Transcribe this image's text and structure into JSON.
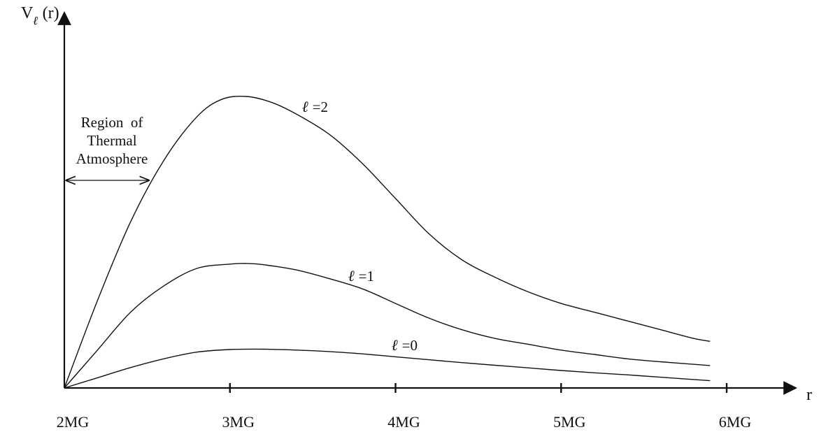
{
  "chart_data": {
    "type": "line",
    "ylabel": {
      "main": "V",
      "sub": "ℓ",
      "arg": " (r)"
    },
    "xlabel": "r",
    "x_ticks": [
      "2MG",
      "3MG",
      "4MG",
      "5MG",
      "6MG"
    ],
    "xlim": [
      2,
      6.2
    ],
    "ylim": [
      0,
      1
    ],
    "series": [
      {
        "name": "ℓ =2",
        "label_prefix": "ℓ",
        "label_suffix": " =2",
        "x": [
          2.0,
          2.2,
          2.4,
          2.6,
          2.8,
          2.95,
          3.1,
          3.25,
          3.4,
          3.6,
          3.8,
          4.0,
          4.2,
          4.4,
          4.6,
          4.8,
          5.0,
          5.2,
          5.4,
          5.6,
          5.8,
          5.9
        ],
        "y": [
          0.0,
          0.3,
          0.57,
          0.78,
          0.93,
          0.99,
          1.0,
          0.98,
          0.94,
          0.87,
          0.77,
          0.65,
          0.53,
          0.44,
          0.38,
          0.33,
          0.29,
          0.26,
          0.23,
          0.2,
          0.17,
          0.16
        ]
      },
      {
        "name": "ℓ =1",
        "label_prefix": "ℓ",
        "label_suffix": " =1",
        "x": [
          2.0,
          2.2,
          2.4,
          2.6,
          2.8,
          3.0,
          3.1,
          3.2,
          3.4,
          3.6,
          3.8,
          4.0,
          4.2,
          4.4,
          4.6,
          4.8,
          5.0,
          5.2,
          5.4,
          5.6,
          5.9
        ],
        "y": [
          0.0,
          0.13,
          0.26,
          0.35,
          0.41,
          0.425,
          0.427,
          0.423,
          0.405,
          0.375,
          0.34,
          0.29,
          0.24,
          0.2,
          0.17,
          0.15,
          0.13,
          0.115,
          0.1,
          0.09,
          0.077
        ]
      },
      {
        "name": "ℓ =0",
        "label_prefix": "ℓ",
        "label_suffix": " =0",
        "x": [
          2.0,
          2.2,
          2.4,
          2.6,
          2.8,
          3.0,
          3.2,
          3.4,
          3.6,
          3.8,
          4.0,
          4.2,
          4.4,
          4.6,
          4.8,
          5.0,
          5.2,
          5.4,
          5.6,
          5.9
        ],
        "y": [
          0.0,
          0.035,
          0.07,
          0.1,
          0.123,
          0.132,
          0.133,
          0.13,
          0.125,
          0.117,
          0.107,
          0.097,
          0.087,
          0.078,
          0.069,
          0.06,
          0.052,
          0.045,
          0.037,
          0.025
        ]
      }
    ],
    "annotation": {
      "lines": [
        "Region  of",
        "Thermal",
        "Atmosphere"
      ],
      "arrow_range": [
        2.0,
        2.5
      ]
    }
  }
}
